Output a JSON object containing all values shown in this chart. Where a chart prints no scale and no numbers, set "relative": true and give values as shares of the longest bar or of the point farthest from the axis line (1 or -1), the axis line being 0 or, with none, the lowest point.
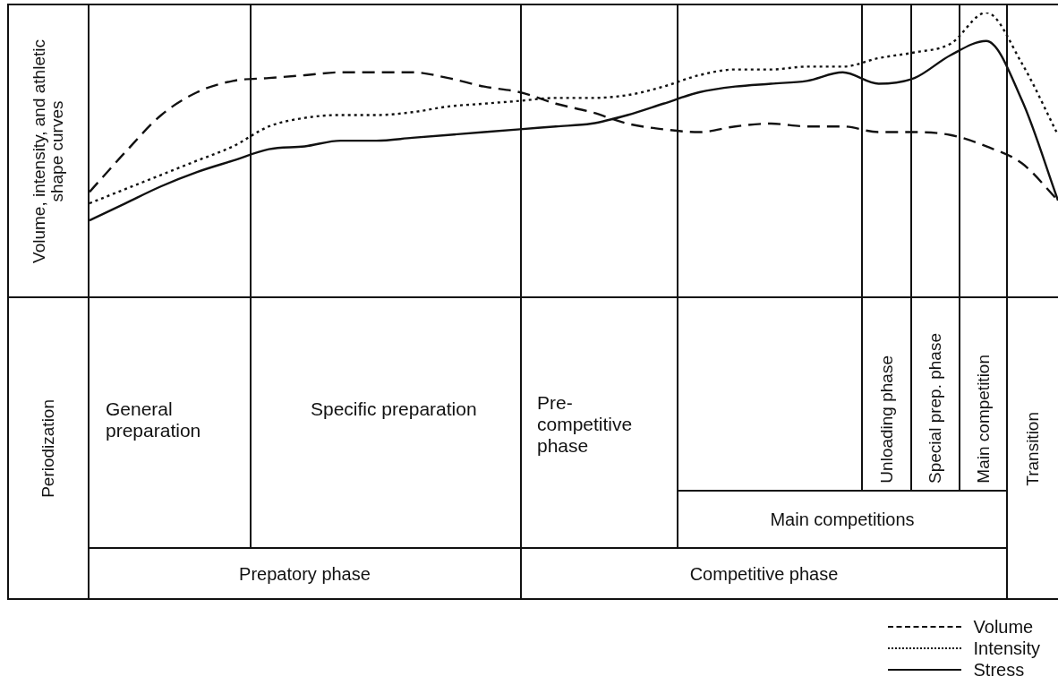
{
  "chart_data": {
    "type": "line",
    "relative": true,
    "ylabel": "Volume, intensity, and athletic shape curves",
    "marker": "none",
    "legend": "bottom right",
    "categories": [
      null,
      null,
      null,
      null,
      null,
      null,
      null,
      null,
      null,
      null,
      null,
      null,
      null,
      null,
      null,
      null,
      null,
      null,
      null,
      null,
      null,
      null,
      null,
      null,
      null,
      null,
      null,
      null
    ],
    "series": [
      {
        "name": "Volume",
        "color": "#111111",
        "line_style": "dashed",
        "values": [
          0.37,
          0.51,
          0.64,
          0.72,
          0.76,
          0.77,
          0.78,
          0.79,
          0.79,
          0.79,
          0.77,
          0.74,
          0.72,
          0.68,
          0.65,
          0.61,
          0.59,
          0.58,
          0.6,
          0.61,
          0.6,
          0.6,
          0.58,
          0.58,
          0.57,
          0.53,
          0.47,
          0.34
        ]
      },
      {
        "name": "Intensity",
        "color": "#111111",
        "line_style": "dotted",
        "values": [
          0.33,
          0.38,
          0.43,
          0.48,
          0.53,
          0.6,
          0.63,
          0.64,
          0.64,
          0.65,
          0.67,
          0.68,
          0.69,
          0.7,
          0.7,
          0.71,
          0.74,
          0.78,
          0.8,
          0.8,
          0.81,
          0.81,
          0.84,
          0.86,
          0.89,
          1,
          0.82,
          0.57
        ]
      },
      {
        "name": "Stress",
        "color": "#111111",
        "line_style": "solid",
        "values": [
          0.27,
          0.33,
          0.39,
          0.44,
          0.48,
          0.52,
          0.53,
          0.55,
          0.55,
          0.56,
          0.57,
          0.58,
          0.59,
          0.6,
          0.61,
          0.64,
          0.68,
          0.72,
          0.74,
          0.75,
          0.76,
          0.79,
          0.75,
          0.77,
          0.85,
          0.9,
          0.69,
          0.34
        ]
      }
    ],
    "annotations": [
      "Periodization",
      "General preparation",
      "Specific preparation",
      "Pre-competitive phase",
      "Unloading phase",
      "Special prep. phase",
      "Main competition",
      "Transition",
      "Main competitions",
      "Prepatory phase",
      "Competitive phase"
    ]
  }
}
